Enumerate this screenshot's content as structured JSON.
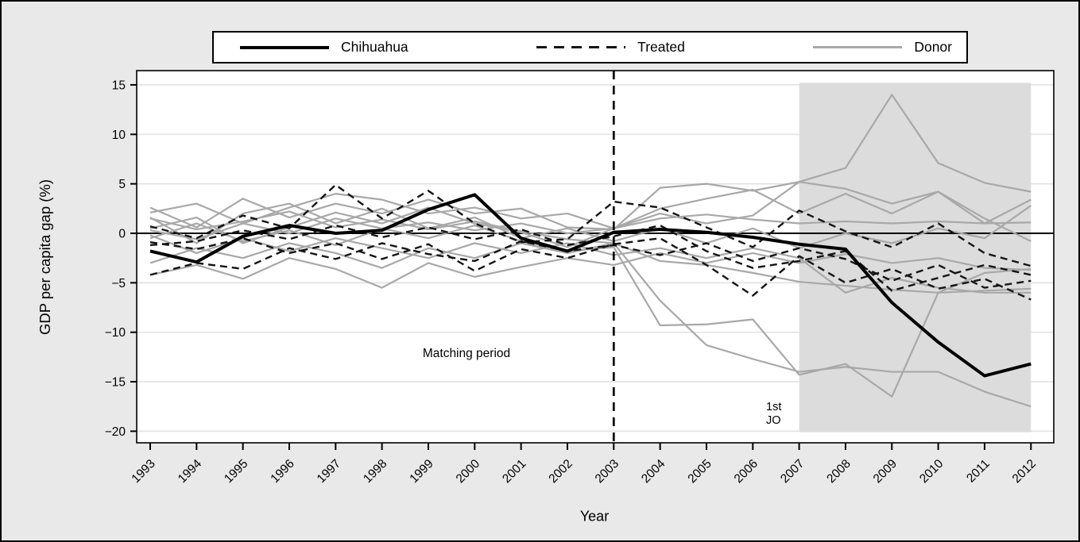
{
  "figure": {
    "y_axis_title": "GDP per capita gap (%)",
    "x_axis_title": "Year"
  },
  "legend": {
    "position": "top",
    "entries": [
      {
        "label": "Chihuahua",
        "style": "thick-solid-black"
      },
      {
        "label": "Treated",
        "style": "dashed-black"
      },
      {
        "label": "Donor",
        "style": "solid-gray"
      }
    ]
  },
  "annotations": {
    "matching_period": "Matching period",
    "first_jo_line1": "1st",
    "first_jo_line2": "JO"
  },
  "colors": {
    "background": "#e9e9e9",
    "plot_bg": "#ffffff",
    "gridline": "#e3e3e3",
    "shading": "#dcdcdc",
    "axis": "#000000",
    "chihuahua": "#000000",
    "treated": "#141414",
    "donor": "#a8a8a8"
  },
  "chart_data": {
    "type": "line",
    "title": "",
    "xlabel": "Year",
    "ylabel": "GDP per capita gap (%)",
    "grid": true,
    "legend_position": "top",
    "x": [
      1993,
      1994,
      1995,
      1996,
      1997,
      1998,
      1999,
      2000,
      2001,
      2002,
      2003,
      2004,
      2005,
      2006,
      2007,
      2008,
      2009,
      2010,
      2011,
      2012
    ],
    "xtick_labels": [
      "1993",
      "1994",
      "1995",
      "1996",
      "1997",
      "1998",
      "1999",
      "2000",
      "2001",
      "2002",
      "2003",
      "2004",
      "2005",
      "2006",
      "2007",
      "2008",
      "2009",
      "2010",
      "2011",
      "2012"
    ],
    "yticks": [
      15,
      10,
      5,
      0,
      -5,
      -10,
      -15,
      -20
    ],
    "ytick_labels": [
      "15",
      "10",
      "5",
      "0",
      "−5",
      "−10",
      "−15",
      "−20"
    ],
    "ylim": [
      -21.2,
      16.4
    ],
    "treatment_year": 2003,
    "zero_line": 0,
    "shaded_region": {
      "x_start": 2007,
      "x_end": 2012,
      "y_top": 15.2,
      "y_bottom": -20.1
    },
    "series": [
      {
        "name": "Chihuahua",
        "role": "chihuahua",
        "values": [
          -1.8,
          -2.9,
          -0.3,
          0.8,
          0.0,
          0.3,
          2.4,
          3.9,
          -0.5,
          -1.8,
          0.1,
          0.4,
          0.1,
          -0.4,
          -1.1,
          -1.6,
          -7.0,
          -11.0,
          -14.4,
          -13.2
        ]
      },
      {
        "name": "Treated 1",
        "role": "treated",
        "values": [
          0.7,
          -0.5,
          1.8,
          0.5,
          4.9,
          1.5,
          4.3,
          1.0,
          -0.9,
          -0.6,
          3.2,
          2.6,
          0.6,
          -1.4,
          2.3,
          0.2,
          -1.4,
          1.0,
          -2.0,
          -3.3
        ]
      },
      {
        "name": "Treated 2",
        "role": "treated",
        "values": [
          -0.9,
          -1.6,
          -0.5,
          -2.0,
          -1.0,
          -2.6,
          -1.1,
          -3.8,
          -1.6,
          -2.5,
          -1.1,
          -0.5,
          -3.2,
          -6.3,
          -2.3,
          -5.0,
          -3.6,
          -5.6,
          -4.6,
          -6.7
        ]
      },
      {
        "name": "Treated 3",
        "role": "treated",
        "values": [
          -4.2,
          -3.0,
          -3.6,
          -1.5,
          -2.6,
          -1.0,
          -2.1,
          -2.8,
          -0.8,
          -1.8,
          -1.2,
          -2.2,
          -1.0,
          -2.8,
          -1.5,
          -2.6,
          -4.8,
          -3.2,
          -5.5,
          -4.8
        ]
      },
      {
        "name": "Treated 4",
        "role": "treated",
        "values": [
          -1.2,
          -0.8,
          0.3,
          -0.6,
          0.8,
          -0.4,
          0.6,
          -0.6,
          0.4,
          -1.2,
          -0.3,
          0.8,
          -1.8,
          -3.5,
          -2.8,
          -1.8,
          -5.8,
          -4.5,
          -3.2,
          -4.2
        ]
      },
      {
        "name": "Donor 1",
        "role": "donor",
        "values": [
          0.5,
          1.6,
          -1.0,
          0.6,
          2.1,
          1.0,
          2.6,
          1.0,
          0.1,
          -1.4,
          0.5,
          2.0,
          1.0,
          1.8,
          5.2,
          6.6,
          14.0,
          7.1,
          5.1,
          4.2
        ]
      },
      {
        "name": "Donor 2",
        "role": "donor",
        "values": [
          2.6,
          0.6,
          3.5,
          1.6,
          3.0,
          2.0,
          3.4,
          2.0,
          2.5,
          0.6,
          0.4,
          4.6,
          5.0,
          4.3,
          5.2,
          4.5,
          3.0,
          4.2,
          1.0,
          3.4
        ]
      },
      {
        "name": "Donor 3",
        "role": "donor",
        "values": [
          1.5,
          0.4,
          1.2,
          2.2,
          0.6,
          1.4,
          0.4,
          1.2,
          0.2,
          -0.6,
          -1.0,
          -2.8,
          -3.2,
          -4.0,
          -4.9,
          -5.3,
          -5.7,
          -6.0,
          -5.8,
          -5.6
        ]
      },
      {
        "name": "Donor 4",
        "role": "donor",
        "values": [
          -0.5,
          1.0,
          -0.8,
          0.3,
          -1.2,
          0.5,
          -0.5,
          0.8,
          -0.8,
          -1.8,
          -1.4,
          -9.3,
          -9.2,
          -8.7,
          -14.3,
          -13.2,
          -16.5,
          -6.0,
          -4.0,
          -3.6
        ]
      },
      {
        "name": "Donor 5",
        "role": "donor",
        "values": [
          -3.0,
          -1.5,
          -2.5,
          -1.0,
          -2.0,
          -3.5,
          -1.5,
          -2.5,
          -1.0,
          -2.0,
          -1.0,
          -6.8,
          -11.3,
          -12.7,
          -14.0,
          -13.5,
          -14.0,
          -14.0,
          -16.0,
          -17.5
        ]
      },
      {
        "name": "Donor 6",
        "role": "donor",
        "values": [
          -4.2,
          -3.2,
          -4.6,
          -2.5,
          -3.6,
          -5.5,
          -3.0,
          -4.4,
          -3.4,
          -2.5,
          -3.2,
          -2.0,
          -3.0,
          -2.0,
          -3.0,
          -2.1,
          -3.0,
          -2.5,
          -3.5,
          -3.7
        ]
      },
      {
        "name": "Donor 7",
        "role": "donor",
        "values": [
          0.3,
          -0.6,
          1.0,
          0.0,
          1.5,
          0.5,
          1.1,
          0.3,
          1.0,
          0.0,
          0.5,
          1.5,
          1.9,
          1.4,
          1.0,
          1.2,
          1.0,
          1.2,
          1.0,
          1.1
        ]
      },
      {
        "name": "Donor 8",
        "role": "donor",
        "values": [
          1.6,
          -1.0,
          2.0,
          3.0,
          1.0,
          2.5,
          0.5,
          1.6,
          -0.5,
          0.5,
          -0.8,
          0.5,
          -1.0,
          0.5,
          -1.5,
          0.0,
          -1.0,
          0.5,
          -0.5,
          2.8
        ]
      },
      {
        "name": "Donor 9",
        "role": "donor",
        "values": [
          -0.2,
          -2.0,
          -0.5,
          -1.8,
          -0.5,
          -1.5,
          -2.5,
          -1.0,
          -2.0,
          -1.0,
          -2.2,
          -1.5,
          -2.5,
          -1.5,
          -2.5,
          -6.0,
          -4.5,
          -5.5,
          -6.0,
          -6.0
        ]
      },
      {
        "name": "Donor 10",
        "role": "donor",
        "values": [
          2.1,
          3.0,
          1.0,
          2.6,
          4.0,
          3.4,
          2.0,
          2.6,
          1.5,
          2.0,
          0.5,
          2.5,
          3.5,
          4.4,
          2.0,
          4.0,
          2.0,
          4.2,
          1.5,
          -0.8
        ]
      }
    ]
  }
}
